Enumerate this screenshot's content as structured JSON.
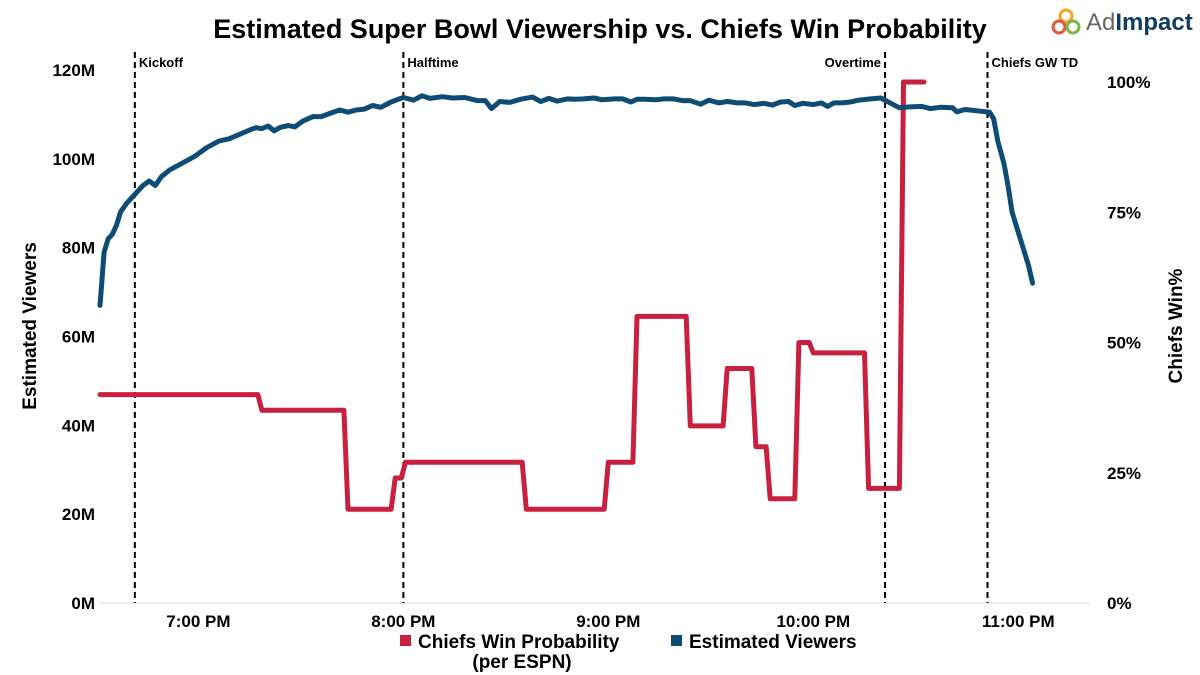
{
  "logo": {
    "text_a": "Ad",
    "text_b": "Impact"
  },
  "colors": {
    "viewers": "#0f4c75",
    "win_prob": "#c8203f",
    "logo_text": "#555555",
    "logo_accent": "#0f3d66"
  },
  "chart_data": {
    "type": "line",
    "title": "Estimated Super Bowl Viewership vs. Chiefs Win Probability",
    "ylabel": "Estimated Viewers",
    "y2label": "Chiefs Win%",
    "xlabel": "",
    "x_unit": "hours after 6:00 PM",
    "xlim": [
      0.52,
      5.35
    ],
    "ylim": [
      0,
      120
    ],
    "y2lim": [
      0,
      100
    ],
    "x_ticks": [
      {
        "value": 1,
        "label": "7:00 PM"
      },
      {
        "value": 2,
        "label": "8:00 PM"
      },
      {
        "value": 3,
        "label": "9:00 PM"
      },
      {
        "value": 4,
        "label": "10:00 PM"
      },
      {
        "value": 5,
        "label": "11:00 PM"
      }
    ],
    "y_ticks": [
      {
        "value": 0,
        "label": "0M"
      },
      {
        "value": 20,
        "label": "20M"
      },
      {
        "value": 40,
        "label": "40M"
      },
      {
        "value": 60,
        "label": "60M"
      },
      {
        "value": 80,
        "label": "80M"
      },
      {
        "value": 100,
        "label": "100M"
      },
      {
        "value": 120,
        "label": "120M"
      }
    ],
    "y2_ticks": [
      {
        "value": 0,
        "label": "0%"
      },
      {
        "value": 25,
        "label": "25%"
      },
      {
        "value": 50,
        "label": "50%"
      },
      {
        "value": 75,
        "label": "75%"
      },
      {
        "value": 100,
        "label": "100%"
      }
    ],
    "events": [
      {
        "x": 0.69,
        "label": "Kickoff"
      },
      {
        "x": 2.0,
        "label": "Halftime"
      },
      {
        "x": 4.35,
        "label": "Overtime"
      },
      {
        "x": 4.85,
        "label": "Chiefs GW TD"
      }
    ],
    "series": [
      {
        "name": "Estimated Viewers",
        "axis": "left",
        "unit": "millions",
        "points": [
          [
            0.52,
            67
          ],
          [
            0.54,
            79
          ],
          [
            0.56,
            82
          ],
          [
            0.58,
            83
          ],
          [
            0.6,
            85
          ],
          [
            0.62,
            88
          ],
          [
            0.65,
            90
          ],
          [
            0.69,
            92
          ],
          [
            0.73,
            94
          ],
          [
            0.76,
            95
          ],
          [
            0.79,
            94
          ],
          [
            0.82,
            96
          ],
          [
            0.86,
            97.5
          ],
          [
            0.92,
            99
          ],
          [
            0.98,
            100.5
          ],
          [
            1.04,
            102.5
          ],
          [
            1.1,
            104
          ],
          [
            1.15,
            104.5
          ],
          [
            1.2,
            105.5
          ],
          [
            1.25,
            106.5
          ],
          [
            1.28,
            107
          ],
          [
            1.31,
            106.8
          ],
          [
            1.34,
            107.4
          ],
          [
            1.37,
            106.3
          ],
          [
            1.4,
            107.1
          ],
          [
            1.44,
            107.5
          ],
          [
            1.47,
            107.2
          ],
          [
            1.51,
            108.5
          ],
          [
            1.56,
            109.5
          ],
          [
            1.6,
            109.5
          ],
          [
            1.64,
            110.2
          ],
          [
            1.69,
            111
          ],
          [
            1.73,
            110.5
          ],
          [
            1.77,
            111
          ],
          [
            1.81,
            111.2
          ],
          [
            1.85,
            112
          ],
          [
            1.89,
            111.6
          ],
          [
            1.94,
            112.8
          ],
          [
            1.98,
            113.5
          ],
          [
            2.0,
            113.8
          ],
          [
            2.05,
            113.2
          ],
          [
            2.09,
            114.2
          ],
          [
            2.13,
            113.6
          ],
          [
            2.19,
            114
          ],
          [
            2.24,
            113.7
          ],
          [
            2.3,
            113.8
          ],
          [
            2.36,
            113.1
          ],
          [
            2.4,
            113.1
          ],
          [
            2.43,
            111.3
          ],
          [
            2.47,
            112.9
          ],
          [
            2.52,
            112.7
          ],
          [
            2.57,
            113.4
          ],
          [
            2.63,
            113.9
          ],
          [
            2.67,
            112.9
          ],
          [
            2.71,
            113.6
          ],
          [
            2.75,
            113
          ],
          [
            2.8,
            113.5
          ],
          [
            2.84,
            113.4
          ],
          [
            2.88,
            113.5
          ],
          [
            2.93,
            113.7
          ],
          [
            2.97,
            113.3
          ],
          [
            3.03,
            113.5
          ],
          [
            3.07,
            113.5
          ],
          [
            3.11,
            112.8
          ],
          [
            3.14,
            113.4
          ],
          [
            3.18,
            113.4
          ],
          [
            3.23,
            113.3
          ],
          [
            3.27,
            113.5
          ],
          [
            3.32,
            113.5
          ],
          [
            3.36,
            113.1
          ],
          [
            3.4,
            113.1
          ],
          [
            3.45,
            112.3
          ],
          [
            3.49,
            113.2
          ],
          [
            3.54,
            112.6
          ],
          [
            3.58,
            112.9
          ],
          [
            3.63,
            112.6
          ],
          [
            3.67,
            112.6
          ],
          [
            3.71,
            112.2
          ],
          [
            3.76,
            112.5
          ],
          [
            3.8,
            112.1
          ],
          [
            3.84,
            112.8
          ],
          [
            3.88,
            112.9
          ],
          [
            3.91,
            112
          ],
          [
            3.95,
            112.5
          ],
          [
            4.0,
            112.2
          ],
          [
            4.04,
            112.6
          ],
          [
            4.07,
            111.8
          ],
          [
            4.1,
            112.6
          ],
          [
            4.14,
            112.6
          ],
          [
            4.18,
            112.8
          ],
          [
            4.22,
            113.2
          ],
          [
            4.28,
            113.5
          ],
          [
            4.33,
            113.7
          ],
          [
            4.37,
            112.7
          ],
          [
            4.42,
            111.5
          ],
          [
            4.47,
            111.7
          ],
          [
            4.53,
            111.8
          ],
          [
            4.57,
            111.3
          ],
          [
            4.62,
            111.6
          ],
          [
            4.68,
            111.5
          ],
          [
            4.7,
            110.6
          ],
          [
            4.74,
            111.1
          ],
          [
            4.78,
            110.9
          ],
          [
            4.82,
            110.7
          ],
          [
            4.86,
            110.5
          ],
          [
            4.88,
            109
          ],
          [
            4.9,
            104
          ],
          [
            4.93,
            99
          ],
          [
            4.95,
            94
          ],
          [
            4.97,
            88
          ],
          [
            4.99,
            85
          ],
          [
            5.01,
            82
          ],
          [
            5.03,
            79
          ],
          [
            5.05,
            76
          ],
          [
            5.07,
            72
          ]
        ]
      },
      {
        "name": "Chiefs Win Probability",
        "legend_label": "Chiefs Win Probability",
        "legend_sublabel": "(per ESPN)",
        "axis": "right",
        "unit": "percent",
        "points": [
          [
            0.52,
            40
          ],
          [
            1.29,
            40
          ],
          [
            1.31,
            37
          ],
          [
            1.71,
            37
          ],
          [
            1.73,
            18
          ],
          [
            1.94,
            18
          ],
          [
            1.96,
            24
          ],
          [
            1.99,
            24
          ],
          [
            2.01,
            27
          ],
          [
            2.58,
            27
          ],
          [
            2.6,
            18
          ],
          [
            2.98,
            18
          ],
          [
            3.0,
            27
          ],
          [
            3.12,
            27
          ],
          [
            3.14,
            55
          ],
          [
            3.38,
            55
          ],
          [
            3.4,
            34
          ],
          [
            3.56,
            34
          ],
          [
            3.58,
            45
          ],
          [
            3.7,
            45
          ],
          [
            3.72,
            30
          ],
          [
            3.77,
            30
          ],
          [
            3.79,
            20
          ],
          [
            3.91,
            20
          ],
          [
            3.93,
            50
          ],
          [
            3.98,
            50
          ],
          [
            4.0,
            48
          ],
          [
            4.25,
            48
          ],
          [
            4.27,
            22
          ],
          [
            4.42,
            22
          ],
          [
            4.44,
            100
          ],
          [
            4.54,
            100
          ]
        ]
      }
    ],
    "legend": [
      {
        "label": "Chiefs Win Probability",
        "sublabel": "(per ESPN)"
      },
      {
        "label": "Estimated Viewers",
        "sublabel": ""
      }
    ]
  }
}
